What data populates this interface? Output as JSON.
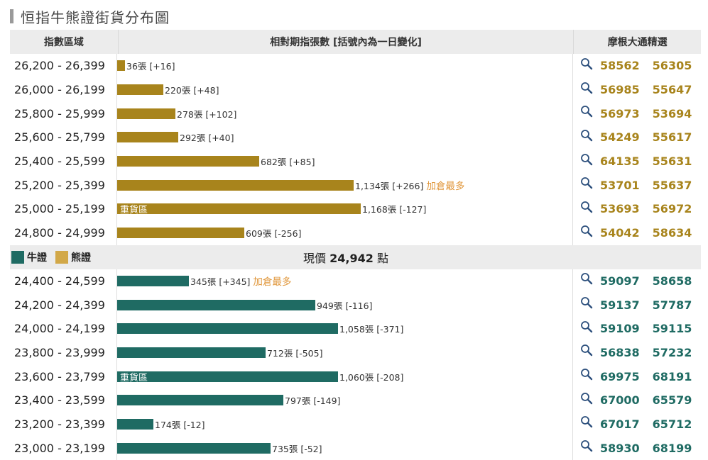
{
  "title": "恒指牛熊證街貨分布圖",
  "headers": {
    "range": "指數區域",
    "bars": "相對期指張數 [括號內為一日變化]",
    "codes": "摩根大通精選"
  },
  "legend": {
    "bull": "牛證",
    "bear": "熊證"
  },
  "current_price": {
    "prefix": "現價",
    "value": "24,942",
    "suffix": "點"
  },
  "colors": {
    "bear": "#a8841c",
    "bull": "#1f6b63",
    "tag": "#e0963a"
  },
  "bear_rows": [
    {
      "range": "26,200 - 26,399",
      "count": 36,
      "label": "36張 [+16]",
      "tag": "",
      "inner": "",
      "codes": [
        "58562",
        "56305"
      ]
    },
    {
      "range": "26,000 - 26,199",
      "count": 220,
      "label": "220張 [+48]",
      "tag": "",
      "inner": "",
      "codes": [
        "56985",
        "55647"
      ]
    },
    {
      "range": "25,800 - 25,999",
      "count": 278,
      "label": "278張 [+102]",
      "tag": "",
      "inner": "",
      "codes": [
        "56973",
        "53694"
      ]
    },
    {
      "range": "25,600 - 25,799",
      "count": 292,
      "label": "292張 [+40]",
      "tag": "",
      "inner": "",
      "codes": [
        "54249",
        "55617"
      ]
    },
    {
      "range": "25,400 - 25,599",
      "count": 682,
      "label": "682張 [+85]",
      "tag": "",
      "inner": "",
      "codes": [
        "64135",
        "55631"
      ]
    },
    {
      "range": "25,200 - 25,399",
      "count": 1134,
      "label": "1,134張 [+266]",
      "tag": "加倉最多",
      "inner": "",
      "codes": [
        "53701",
        "55637"
      ]
    },
    {
      "range": "25,000 - 25,199",
      "count": 1168,
      "label": "1,168張 [-127]",
      "tag": "",
      "inner": "重貨區",
      "codes": [
        "53693",
        "56972"
      ]
    },
    {
      "range": "24,800 - 24,999",
      "count": 609,
      "label": "609張 [-256]",
      "tag": "",
      "inner": "",
      "codes": [
        "54042",
        "58634"
      ]
    }
  ],
  "bull_rows": [
    {
      "range": "24,400 - 24,599",
      "count": 345,
      "label": "345張 [+345]",
      "tag": "加倉最多",
      "inner": "",
      "codes": [
        "59097",
        "58658"
      ]
    },
    {
      "range": "24,200 - 24,399",
      "count": 949,
      "label": "949張 [-116]",
      "tag": "",
      "inner": "",
      "codes": [
        "59137",
        "57787"
      ]
    },
    {
      "range": "24,000 - 24,199",
      "count": 1058,
      "label": "1,058張 [-371]",
      "tag": "",
      "inner": "",
      "codes": [
        "59109",
        "59115"
      ]
    },
    {
      "range": "23,800 - 23,999",
      "count": 712,
      "label": "712張 [-505]",
      "tag": "",
      "inner": "",
      "codes": [
        "56838",
        "57232"
      ]
    },
    {
      "range": "23,600 - 23,799",
      "count": 1060,
      "label": "1,060張 [-208]",
      "tag": "",
      "inner": "重貨區",
      "codes": [
        "69975",
        "68191"
      ]
    },
    {
      "range": "23,400 - 23,599",
      "count": 797,
      "label": "797張 [-149]",
      "tag": "",
      "inner": "",
      "codes": [
        "67000",
        "65579"
      ]
    },
    {
      "range": "23,200 - 23,399",
      "count": 174,
      "label": "174張 [-12]",
      "tag": "",
      "inner": "",
      "codes": [
        "67017",
        "65712"
      ]
    },
    {
      "range": "23,000 - 23,199",
      "count": 735,
      "label": "735張 [-52]",
      "tag": "",
      "inner": "",
      "codes": [
        "58930",
        "68199"
      ]
    }
  ]
}
